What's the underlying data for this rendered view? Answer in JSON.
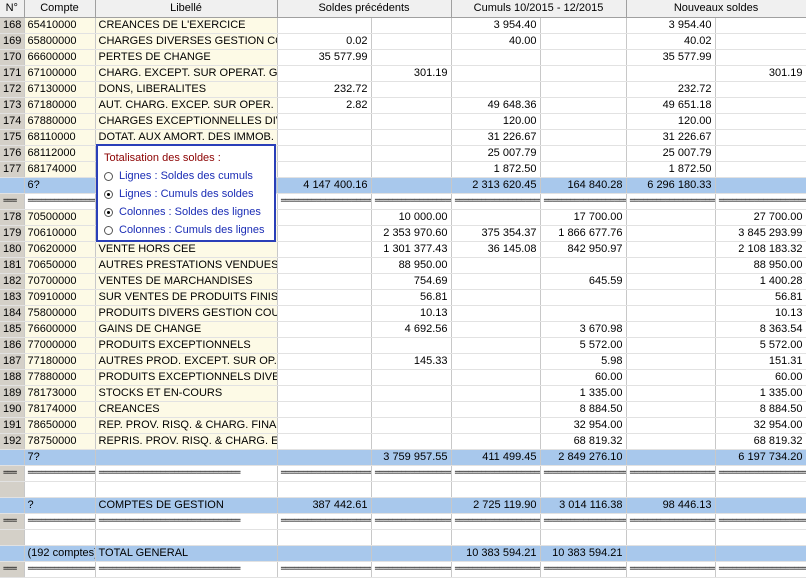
{
  "headers": [
    "N°",
    "Compte",
    "Libellé",
    "Soldes précédents",
    "Cumuls 10/2015 - 12/2015",
    "Nouveaux soldes"
  ],
  "sep": "================================",
  "rows": [
    {
      "t": "d",
      "n": "168",
      "c": "65410000",
      "l": "CREANCES DE L'EXERCICE",
      "sd": "",
      "sc": "",
      "cd": "3 954.40",
      "cc": "",
      "nd": "3 954.40",
      "nc": ""
    },
    {
      "t": "d",
      "n": "169",
      "c": "65800000",
      "l": "CHARGES DIVERSES GESTION CO",
      "sd": "0.02",
      "sc": "",
      "cd": "40.00",
      "cc": "",
      "nd": "40.02",
      "nc": ""
    },
    {
      "t": "d",
      "n": "170",
      "c": "66600000",
      "l": "PERTES DE CHANGE",
      "sd": "35 577.99",
      "sc": "",
      "cd": "",
      "cc": "",
      "nd": "35 577.99",
      "nc": ""
    },
    {
      "t": "d",
      "n": "171",
      "c": "67100000",
      "l": "CHARG. EXCEPT. SUR OPERAT. G",
      "sd": "",
      "sc": "301.19",
      "cd": "",
      "cc": "",
      "nd": "",
      "nc": "301.19"
    },
    {
      "t": "d",
      "n": "172",
      "c": "67130000",
      "l": "DONS, LIBERALITES",
      "sd": "232.72",
      "sc": "",
      "cd": "",
      "cc": "",
      "nd": "232.72",
      "nc": ""
    },
    {
      "t": "d",
      "n": "173",
      "c": "67180000",
      "l": "AUT. CHARG. EXCEP. SUR OPER. (",
      "sd": "2.82",
      "sc": "",
      "cd": "49 648.36",
      "cc": "",
      "nd": "49 651.18",
      "nc": ""
    },
    {
      "t": "d",
      "n": "174",
      "c": "67880000",
      "l": "CHARGES EXCEPTIONNELLES DIV",
      "sd": "",
      "sc": "",
      "cd": "120.00",
      "cc": "",
      "nd": "120.00",
      "nc": ""
    },
    {
      "t": "d",
      "n": "175",
      "c": "68110000",
      "l": "DOTAT. AUX AMORT. DES IMMOB.",
      "sd": "",
      "sc": "",
      "cd": "31 226.67",
      "cc": "",
      "nd": "31 226.67",
      "nc": ""
    },
    {
      "t": "d",
      "n": "176",
      "c": "68112000",
      "l": "",
      "sd": "",
      "sc": "",
      "cd": "25 007.79",
      "cc": "",
      "nd": "25 007.79",
      "nc": ""
    },
    {
      "t": "d",
      "n": "177",
      "c": "68174000",
      "l": "",
      "sd": "",
      "sc": "",
      "cd": "1 872.50",
      "cc": "",
      "nd": "1 872.50",
      "nc": ""
    },
    {
      "t": "s",
      "n": "",
      "c": "6?",
      "l": "",
      "sd": "4 147 400.16",
      "sc": "",
      "cd": "2 313 620.45",
      "cc": "164 840.28",
      "nd": "6 296 180.33",
      "nc": ""
    },
    {
      "t": "e",
      "n": "==="
    },
    {
      "t": "d",
      "n": "178",
      "c": "70500000",
      "l": "",
      "sd": "",
      "sc": "10 000.00",
      "cd": "",
      "cc": "17 700.00",
      "nd": "",
      "nc": "27 700.00"
    },
    {
      "t": "d",
      "n": "179",
      "c": "70610000",
      "l": "",
      "sd": "",
      "sc": "2 353 970.60",
      "cd": "375 354.37",
      "cc": "1 866 677.76",
      "nd": "",
      "nc": "3 845 293.99"
    },
    {
      "t": "d",
      "n": "180",
      "c": "70620000",
      "l": "VENTE HORS CEE",
      "sd": "",
      "sc": "1 301 377.43",
      "cd": "36 145.08",
      "cc": "842 950.97",
      "nd": "",
      "nc": "2 108 183.32"
    },
    {
      "t": "d",
      "n": "181",
      "c": "70650000",
      "l": "AUTRES PRESTATIONS VENDUES",
      "sd": "",
      "sc": "88 950.00",
      "cd": "",
      "cc": "",
      "nd": "",
      "nc": "88 950.00"
    },
    {
      "t": "d",
      "n": "182",
      "c": "70700000",
      "l": "VENTES DE MARCHANDISES",
      "sd": "",
      "sc": "754.69",
      "cd": "",
      "cc": "645.59",
      "nd": "",
      "nc": "1 400.28"
    },
    {
      "t": "d",
      "n": "183",
      "c": "70910000",
      "l": "SUR VENTES DE PRODUITS FINIS",
      "sd": "",
      "sc": "56.81",
      "cd": "",
      "cc": "",
      "nd": "",
      "nc": "56.81"
    },
    {
      "t": "d",
      "n": "184",
      "c": "75800000",
      "l": "PRODUITS DIVERS GESTION COU",
      "sd": "",
      "sc": "10.13",
      "cd": "",
      "cc": "",
      "nd": "",
      "nc": "10.13"
    },
    {
      "t": "d",
      "n": "185",
      "c": "76600000",
      "l": "GAINS DE CHANGE",
      "sd": "",
      "sc": "4 692.56",
      "cd": "",
      "cc": "3 670.98",
      "nd": "",
      "nc": "8 363.54"
    },
    {
      "t": "d",
      "n": "186",
      "c": "77000000",
      "l": "PRODUITS EXCEPTIONNELS",
      "sd": "",
      "sc": "",
      "cd": "",
      "cc": "5 572.00",
      "nd": "",
      "nc": "5 572.00"
    },
    {
      "t": "d",
      "n": "187",
      "c": "77180000",
      "l": "AUTRES PROD. EXCEPT. SUR OP.",
      "sd": "",
      "sc": "145.33",
      "cd": "",
      "cc": "5.98",
      "nd": "",
      "nc": "151.31"
    },
    {
      "t": "d",
      "n": "188",
      "c": "77880000",
      "l": "PRODUITS EXCEPTIONNELS DIVE",
      "sd": "",
      "sc": "",
      "cd": "",
      "cc": "60.00",
      "nd": "",
      "nc": "60.00"
    },
    {
      "t": "d",
      "n": "189",
      "c": "78173000",
      "l": "STOCKS ET EN-COURS",
      "sd": "",
      "sc": "",
      "cd": "",
      "cc": "1 335.00",
      "nd": "",
      "nc": "1 335.00"
    },
    {
      "t": "d",
      "n": "190",
      "c": "78174000",
      "l": "CREANCES",
      "sd": "",
      "sc": "",
      "cd": "",
      "cc": "8 884.50",
      "nd": "",
      "nc": "8 884.50"
    },
    {
      "t": "d",
      "n": "191",
      "c": "78650000",
      "l": "REP. PROV. RISQ. & CHARG. FINAN",
      "sd": "",
      "sc": "",
      "cd": "",
      "cc": "32 954.00",
      "nd": "",
      "nc": "32 954.00"
    },
    {
      "t": "d",
      "n": "192",
      "c": "78750000",
      "l": "REPRIS. PROV. RISQ. & CHARG. EX",
      "sd": "",
      "sc": "",
      "cd": "",
      "cc": "68 819.32",
      "nd": "",
      "nc": "68 819.32"
    },
    {
      "t": "s",
      "n": "",
      "c": "7?",
      "l": "",
      "sd": "",
      "sc": "3 759 957.55",
      "cd": "411 499.45",
      "cc": "2 849 276.10",
      "nd": "",
      "nc": "6 197 734.20"
    },
    {
      "t": "e",
      "n": "==="
    },
    {
      "t": "b",
      "n": ""
    },
    {
      "t": "r",
      "n": "",
      "c": "?",
      "l": "COMPTES DE GESTION",
      "sd": "387 442.61",
      "sc": "",
      "cd": "2 725 119.90",
      "cc": "3 014 116.38",
      "nd": "98 446.13",
      "nc": ""
    },
    {
      "t": "e",
      "n": "==="
    },
    {
      "t": "b",
      "n": ""
    },
    {
      "t": "r",
      "n": "",
      "c": "(192 comptes)",
      "l": "TOTAL GENERAL",
      "sd": "",
      "sc": "",
      "cd": "10 383 594.21",
      "cc": "10 383 594.21",
      "nd": "",
      "nc": ""
    },
    {
      "t": "e",
      "n": "==="
    }
  ],
  "popup": {
    "title": "Totalisation des soldes :",
    "options": [
      {
        "label": "Lignes : Soldes des cumuls",
        "checked": false
      },
      {
        "label": "Lignes : Cumuls des soldes",
        "checked": true
      },
      {
        "label": "Colonnes : Soldes des lignes",
        "checked": true
      },
      {
        "label": "Colonnes : Cumuls des lignes",
        "checked": false
      }
    ]
  }
}
